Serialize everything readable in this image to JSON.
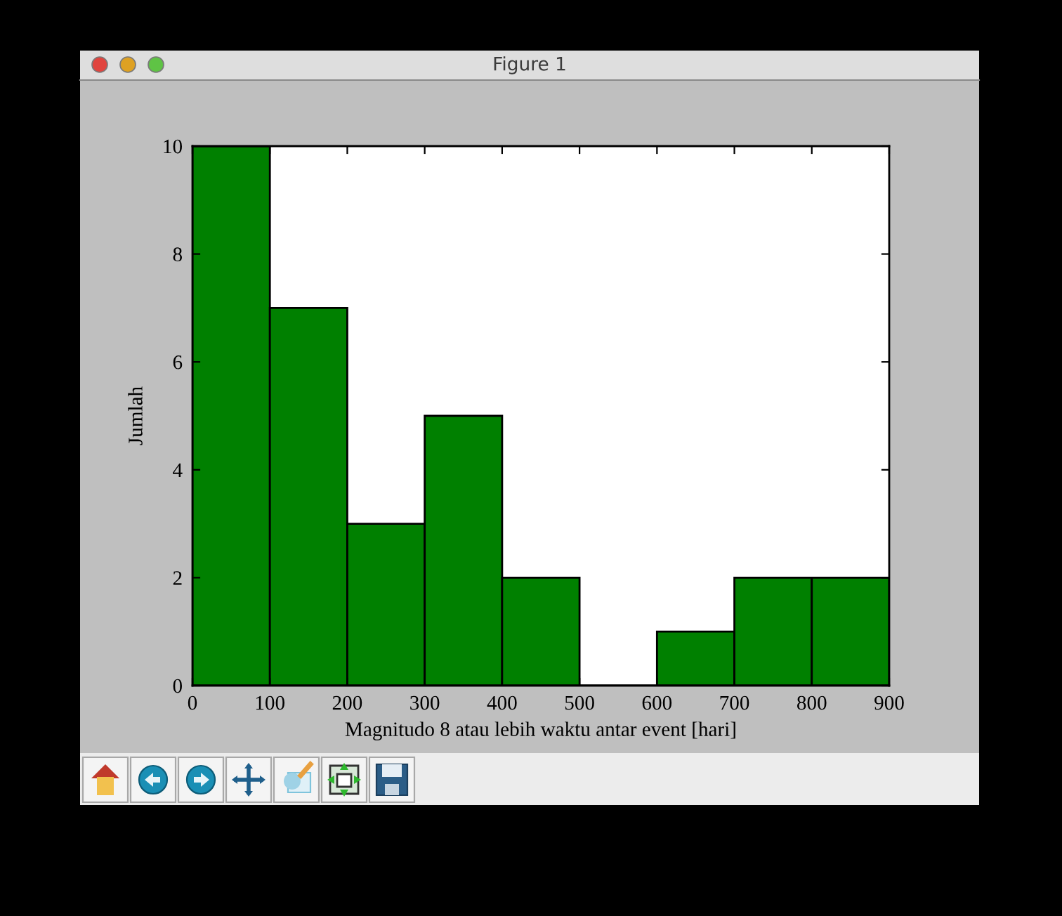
{
  "chart_data": {
    "type": "histogram",
    "title": "Figure 1",
    "xlabel": "Magnitudo 8 atau lebih waktu antar event [hari]",
    "ylabel": "Jumlah",
    "bins": [
      0,
      100,
      200,
      300,
      400,
      500,
      600,
      700,
      800,
      900
    ],
    "values": [
      10,
      7,
      3,
      5,
      2,
      0,
      1,
      2,
      2
    ],
    "color": "#008000",
    "xlim": [
      0,
      900
    ],
    "ylim": [
      0,
      10
    ],
    "xticks": [
      0,
      100,
      200,
      300,
      400,
      500,
      600,
      700,
      800,
      900
    ],
    "yticks": [
      0,
      2,
      4,
      6,
      8,
      10
    ]
  }
}
